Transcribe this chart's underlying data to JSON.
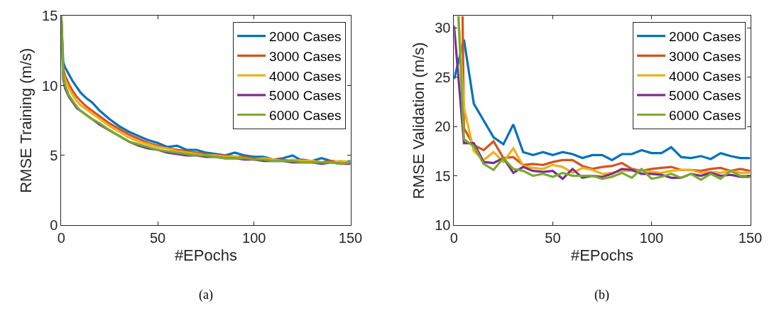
{
  "chart_data": [
    {
      "type": "line",
      "xlabel": "#EPochs",
      "ylabel": "RMSE Training (m/s)",
      "annotations": [
        "(a)"
      ],
      "legend": "top right",
      "line_style": "solid",
      "xlim": [
        0,
        150
      ],
      "xticks": [
        0,
        50,
        100,
        150
      ],
      "ylim": [
        0,
        15
      ],
      "yticks": [
        0,
        5,
        10,
        15
      ],
      "x": [
        0,
        1,
        2,
        4,
        6,
        8,
        10,
        13,
        16,
        20,
        25,
        30,
        35,
        40,
        45,
        50,
        55,
        60,
        65,
        70,
        75,
        80,
        85,
        90,
        95,
        100,
        105,
        110,
        115,
        120,
        125,
        130,
        135,
        140,
        145,
        150
      ],
      "series": [
        {
          "name": "2000 Cases",
          "color": "#0072bd",
          "values": [
            15,
            11.7,
            11.3,
            10.8,
            10.3,
            9.9,
            9.5,
            9.1,
            8.8,
            8.2,
            7.6,
            7.1,
            6.7,
            6.4,
            6.1,
            5.9,
            5.6,
            5.7,
            5.4,
            5.4,
            5.2,
            5.1,
            5.0,
            5.2,
            5.0,
            4.9,
            4.9,
            4.7,
            4.8,
            5.0,
            4.6,
            4.6,
            4.8,
            4.6,
            4.5,
            4.6
          ]
        },
        {
          "name": "3000 Cases",
          "color": "#d95319",
          "values": [
            15,
            11.2,
            10.7,
            10.1,
            9.6,
            9.2,
            8.9,
            8.5,
            8.2,
            7.8,
            7.3,
            6.9,
            6.5,
            6.2,
            5.9,
            5.7,
            5.5,
            5.4,
            5.3,
            5.2,
            5.1,
            5.0,
            5.0,
            4.9,
            4.9,
            4.8,
            4.8,
            4.7,
            4.7,
            4.6,
            4.7,
            4.6,
            4.5,
            4.6,
            4.5,
            4.5
          ]
        },
        {
          "name": "4000 Cases",
          "color": "#edb120",
          "values": [
            15,
            10.9,
            10.4,
            9.8,
            9.3,
            8.9,
            8.6,
            8.3,
            8.0,
            7.6,
            7.1,
            6.7,
            6.3,
            6.0,
            5.8,
            5.6,
            5.5,
            5.3,
            5.2,
            5.1,
            5.0,
            5.0,
            4.9,
            4.9,
            4.8,
            4.7,
            4.8,
            4.7,
            4.6,
            4.7,
            4.6,
            4.6,
            4.5,
            4.5,
            4.6,
            4.5
          ]
        },
        {
          "name": "5000 Cases",
          "color": "#7e2f8e",
          "values": [
            15,
            10.5,
            9.8,
            9.2,
            8.8,
            8.4,
            8.2,
            7.9,
            7.6,
            7.2,
            6.8,
            6.4,
            6.0,
            5.7,
            5.5,
            5.4,
            5.2,
            5.1,
            5.0,
            5.0,
            4.9,
            4.9,
            4.8,
            4.8,
            4.7,
            4.7,
            4.6,
            4.6,
            4.6,
            4.5,
            4.5,
            4.5,
            4.4,
            4.5,
            4.4,
            4.4
          ]
        },
        {
          "name": "6000 Cases",
          "color": "#77ac30",
          "values": [
            15,
            10.7,
            10.0,
            9.3,
            8.9,
            8.5,
            8.2,
            7.9,
            7.6,
            7.3,
            6.8,
            6.4,
            6.0,
            5.8,
            5.6,
            5.4,
            5.3,
            5.2,
            5.1,
            5.0,
            5.0,
            4.9,
            4.8,
            4.8,
            4.8,
            4.7,
            4.7,
            4.6,
            4.6,
            4.6,
            4.5,
            4.5,
            4.5,
            4.5,
            4.4,
            4.5
          ]
        }
      ]
    },
    {
      "type": "line",
      "xlabel": "#EPochs",
      "ylabel": "RMSE Validation (m/s)",
      "annotations": [
        "(b)"
      ],
      "legend": "top right",
      "line_style": "solid",
      "xlim": [
        0,
        150
      ],
      "xticks": [
        0,
        50,
        100,
        150
      ],
      "ylim": [
        10,
        31.2
      ],
      "yticks": [
        10,
        15,
        20,
        25,
        30
      ],
      "series": [
        {
          "name": "2000 Cases",
          "color": "#0072bd",
          "x": [
            0,
            5,
            10,
            15,
            20,
            25,
            30,
            35,
            40,
            45,
            50,
            55,
            60,
            65,
            70,
            75,
            80,
            85,
            90,
            95,
            100,
            105,
            110,
            115,
            120,
            125,
            130,
            135,
            140,
            145,
            150
          ],
          "values": [
            24.8,
            28.8,
            22.3,
            20.6,
            18.9,
            18.2,
            20.2,
            17.4,
            17.1,
            17.4,
            17.1,
            17.4,
            17.2,
            16.8,
            17.1,
            17.1,
            16.6,
            17.2,
            17.2,
            17.6,
            17.3,
            17.3,
            17.9,
            16.9,
            16.8,
            17.0,
            16.7,
            17.3,
            17.0,
            16.8,
            16.8
          ]
        },
        {
          "name": "3000 Cases",
          "color": "#d95319",
          "x": [
            4.3,
            5,
            10,
            15,
            20,
            25,
            30,
            35,
            40,
            45,
            50,
            55,
            60,
            65,
            70,
            75,
            80,
            85,
            90,
            95,
            100,
            105,
            110,
            115,
            120,
            125,
            130,
            135,
            140,
            145,
            150
          ],
          "values": [
            31.2,
            19.8,
            18.1,
            17.6,
            18.5,
            16.8,
            16.9,
            16.1,
            16.2,
            16.1,
            16.4,
            16.6,
            16.6,
            16.0,
            15.7,
            15.9,
            16.0,
            16.3,
            15.7,
            15.5,
            15.7,
            15.8,
            15.9,
            15.6,
            15.6,
            15.5,
            15.7,
            15.8,
            15.5,
            15.7,
            15.5
          ]
        },
        {
          "name": "4000 Cases",
          "color": "#edb120",
          "x": [
            2.2,
            5,
            10,
            15,
            20,
            25,
            30,
            35,
            40,
            45,
            50,
            55,
            60,
            65,
            70,
            75,
            80,
            85,
            90,
            95,
            100,
            105,
            110,
            115,
            120,
            125,
            130,
            135,
            140,
            145,
            150
          ],
          "values": [
            31.2,
            21.9,
            17.5,
            16.6,
            17.4,
            16.4,
            17.8,
            16.0,
            15.8,
            15.7,
            16.1,
            15.9,
            15.3,
            15.8,
            15.6,
            15.2,
            15.3,
            15.5,
            15.5,
            15.5,
            15.4,
            15.3,
            15.5,
            15.6,
            15.6,
            15.3,
            15.4,
            15.3,
            15.5,
            15.3,
            15.3
          ]
        },
        {
          "name": "5000 Cases",
          "color": "#7e2f8e",
          "x": [
            0,
            5,
            10,
            15,
            20,
            25,
            30,
            35,
            40,
            45,
            50,
            55,
            60,
            65,
            70,
            75,
            80,
            85,
            90,
            95,
            100,
            105,
            110,
            115,
            120,
            125,
            130,
            135,
            140,
            145,
            150
          ],
          "values": [
            30.2,
            18.3,
            18.3,
            16.4,
            16.3,
            16.8,
            15.3,
            15.9,
            15.5,
            15.4,
            15.5,
            14.7,
            15.7,
            14.8,
            15.0,
            14.9,
            15.2,
            15.7,
            15.6,
            15.2,
            15.2,
            15.1,
            14.8,
            14.8,
            15.2,
            15.0,
            15.3,
            15.0,
            15.1,
            14.9,
            14.9
          ]
        },
        {
          "name": "6000 Cases",
          "color": "#77ac30",
          "x": [
            2.2,
            5,
            10,
            15,
            20,
            25,
            30,
            35,
            40,
            45,
            50,
            55,
            60,
            65,
            70,
            75,
            80,
            85,
            90,
            95,
            100,
            105,
            110,
            115,
            120,
            125,
            130,
            135,
            140,
            145,
            150
          ],
          "values": [
            31.2,
            18.7,
            18.0,
            16.2,
            15.6,
            16.8,
            15.7,
            15.5,
            15.0,
            15.2,
            14.9,
            15.3,
            15.0,
            15.0,
            15.0,
            14.7,
            14.9,
            15.3,
            14.8,
            15.7,
            14.7,
            14.9,
            15.2,
            14.8,
            15.2,
            14.6,
            15.2,
            14.7,
            15.5,
            15.0,
            15.0
          ]
        }
      ]
    }
  ]
}
